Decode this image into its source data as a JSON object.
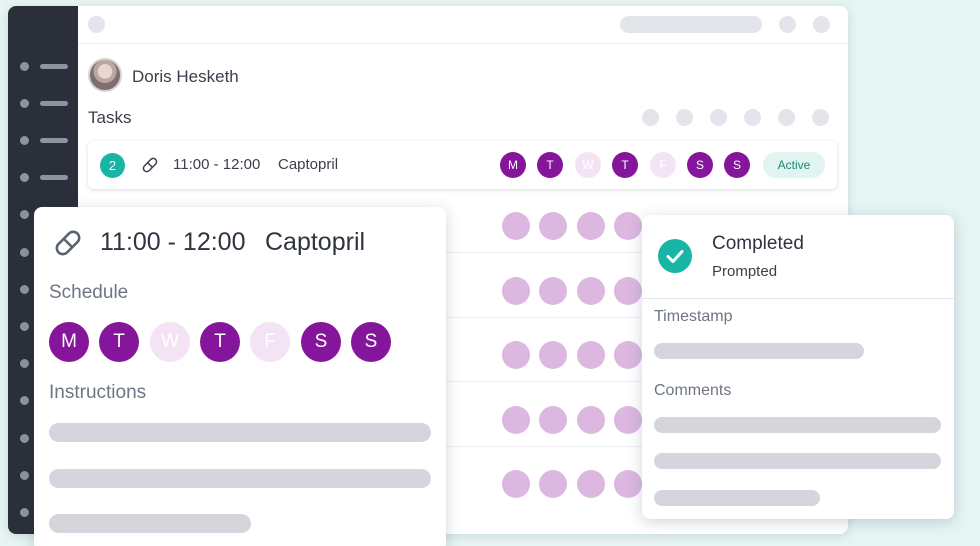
{
  "user": {
    "name": "Doris Hesketh"
  },
  "tasks": {
    "label": "Tasks",
    "row": {
      "number": "2",
      "time": "11:00 - 12:00",
      "medication": "Captopril",
      "days": [
        {
          "letter": "M",
          "active": true
        },
        {
          "letter": "T",
          "active": true
        },
        {
          "letter": "W",
          "active": false
        },
        {
          "letter": "T",
          "active": true
        },
        {
          "letter": "F",
          "active": false
        },
        {
          "letter": "S",
          "active": true
        },
        {
          "letter": "S",
          "active": true
        }
      ],
      "status": "Active"
    }
  },
  "detail": {
    "time": "11:00 - 12:00",
    "medication": "Captopril",
    "schedule_label": "Schedule",
    "instructions_label": "Instructions",
    "days": [
      "M",
      "T",
      "W",
      "T",
      "F",
      "S",
      "S"
    ]
  },
  "status_card": {
    "title": "Completed",
    "subtitle": "Prompted",
    "timestamp_label": "Timestamp",
    "comments_label": "Comments"
  },
  "icons": {
    "medication": "pill-icon",
    "avatar": "user-photo",
    "completed": "check-icon"
  },
  "colors": {
    "accent_teal": "#18b5a4",
    "day_active": "#85169b",
    "day_inactive": "#f4e3f4",
    "sidebar": "#2b2f3a"
  }
}
